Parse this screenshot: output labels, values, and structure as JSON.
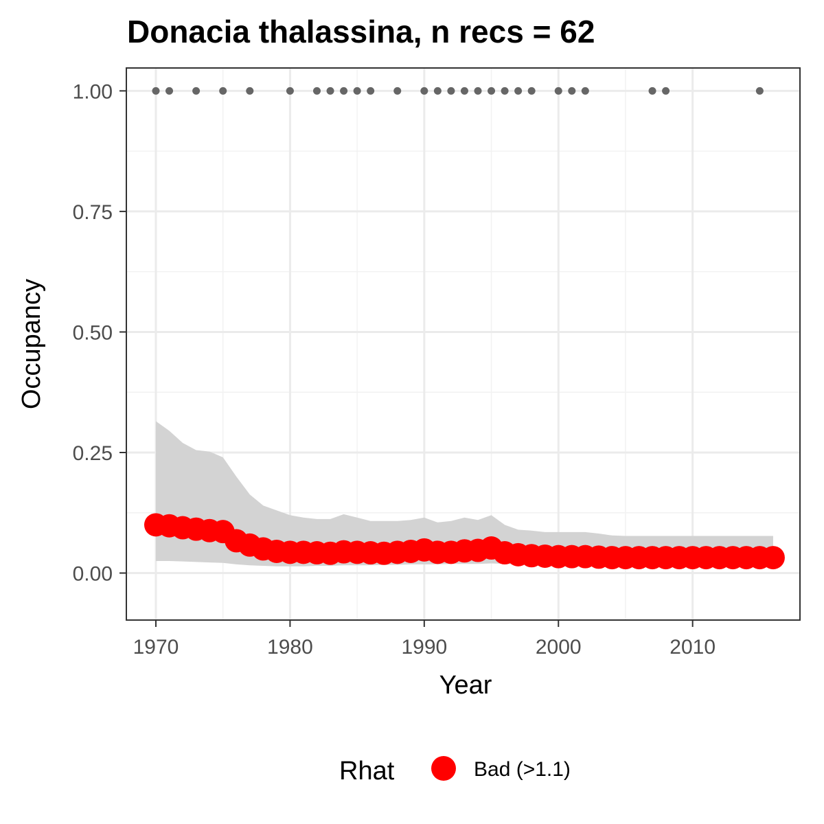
{
  "chart_data": {
    "type": "line",
    "title": "Donacia thalassina, n recs = 62",
    "xlabel": "Year",
    "ylabel": "Occupancy",
    "xlim": [
      1967.8,
      2018.0
    ],
    "ylim": [
      -0.0975,
      1.0475
    ],
    "x_ticks": [
      1970,
      1980,
      1990,
      2000,
      2010
    ],
    "x_tick_labels": [
      "1970",
      "1980",
      "1990",
      "2000",
      "2010"
    ],
    "y_ticks": [
      0,
      0.25,
      0.5,
      0.75,
      1.0
    ],
    "y_tick_labels": [
      "0.00",
      "0.25",
      "0.50",
      "0.75",
      "1.00"
    ],
    "grid": true,
    "legend": {
      "title": "Rhat",
      "position": "bottom",
      "entries": [
        {
          "label": "Bad (>1.1)",
          "color": "#ff0000"
        }
      ]
    },
    "series": [
      {
        "name": "Bad (>1.1)",
        "kind": "points",
        "color": "#ff0000",
        "x": [
          1970,
          1971,
          1972,
          1973,
          1974,
          1975,
          1976,
          1977,
          1978,
          1979,
          1980,
          1981,
          1982,
          1983,
          1984,
          1985,
          1986,
          1987,
          1988,
          1989,
          1990,
          1991,
          1992,
          1993,
          1994,
          1995,
          1996,
          1997,
          1998,
          1999,
          2000,
          2001,
          2002,
          2003,
          2004,
          2005,
          2006,
          2007,
          2008,
          2009,
          2010,
          2011,
          2012,
          2013,
          2014,
          2015,
          2016
        ],
        "values": [
          0.1,
          0.098,
          0.094,
          0.091,
          0.088,
          0.086,
          0.067,
          0.058,
          0.05,
          0.045,
          0.043,
          0.043,
          0.042,
          0.041,
          0.044,
          0.043,
          0.042,
          0.041,
          0.043,
          0.045,
          0.048,
          0.043,
          0.043,
          0.046,
          0.047,
          0.052,
          0.042,
          0.038,
          0.036,
          0.035,
          0.034,
          0.034,
          0.034,
          0.033,
          0.032,
          0.032,
          0.032,
          0.032,
          0.032,
          0.032,
          0.032,
          0.032,
          0.032,
          0.032,
          0.032,
          0.032,
          0.032
        ]
      },
      {
        "name": "",
        "kind": "ribbon",
        "color": "#d3d3d3",
        "x": [
          1970,
          1971,
          1972,
          1973,
          1974,
          1975,
          1976,
          1977,
          1978,
          1979,
          1980,
          1981,
          1982,
          1983,
          1984,
          1985,
          1986,
          1987,
          1988,
          1989,
          1990,
          1991,
          1992,
          1993,
          1994,
          1995,
          1996,
          1997,
          1998,
          1999,
          2000,
          2001,
          2002,
          2003,
          2004,
          2005,
          2006,
          2007,
          2008,
          2009,
          2010,
          2011,
          2012,
          2013,
          2014,
          2015,
          2016
        ],
        "lower": [
          0.025,
          0.025,
          0.024,
          0.023,
          0.022,
          0.021,
          0.018,
          0.016,
          0.015,
          0.014,
          0.014,
          0.014,
          0.015,
          0.015,
          0.016,
          0.016,
          0.016,
          0.017,
          0.017,
          0.018,
          0.018,
          0.018,
          0.019,
          0.019,
          0.019,
          0.02,
          0.019,
          0.018,
          0.018,
          0.017,
          0.017,
          0.017,
          0.017,
          0.016,
          0.016,
          0.016,
          0.016,
          0.016,
          0.016,
          0.016,
          0.016,
          0.016,
          0.016,
          0.016,
          0.016,
          0.016,
          0.016
        ],
        "upper": [
          0.315,
          0.295,
          0.27,
          0.255,
          0.252,
          0.24,
          0.2,
          0.163,
          0.14,
          0.13,
          0.12,
          0.115,
          0.112,
          0.112,
          0.122,
          0.115,
          0.108,
          0.108,
          0.108,
          0.11,
          0.115,
          0.105,
          0.108,
          0.115,
          0.11,
          0.12,
          0.1,
          0.09,
          0.088,
          0.085,
          0.085,
          0.085,
          0.085,
          0.082,
          0.078,
          0.077,
          0.077,
          0.077,
          0.077,
          0.077,
          0.077,
          0.077,
          0.077,
          0.077,
          0.077,
          0.077,
          0.077
        ]
      },
      {
        "name": "",
        "kind": "records",
        "color": "#666666",
        "x": [
          1970,
          1971,
          1973,
          1975,
          1977,
          1980,
          1982,
          1983,
          1984,
          1985,
          1986,
          1988,
          1990,
          1991,
          1992,
          1993,
          1994,
          1995,
          1996,
          1997,
          1998,
          2000,
          2001,
          2002,
          2007,
          2008,
          2015
        ],
        "values": [
          1,
          1,
          1,
          1,
          1,
          1,
          1,
          1,
          1,
          1,
          1,
          1,
          1,
          1,
          1,
          1,
          1,
          1,
          1,
          1,
          1,
          1,
          1,
          1,
          1,
          1,
          1
        ]
      }
    ]
  }
}
